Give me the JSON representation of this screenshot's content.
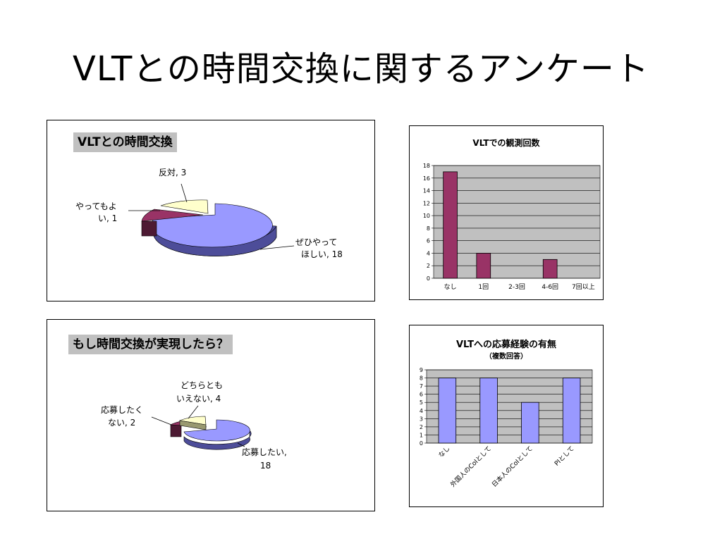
{
  "slide": {
    "title": "VLTとの時間交換に関するアンケート"
  },
  "colors": {
    "pie_main": "#9999ff",
    "pie_main_side": "#4d4d99",
    "pie_second": "#993366",
    "pie_second_side": "#4d1a33",
    "pie_third": "#ffffcc",
    "pie_third_side": "#999970",
    "bar_maroon": "#993366",
    "bar_blue": "#9999ff",
    "plot_bg": "#c0c0c0",
    "title_bg": "#c0c0c0"
  },
  "chart_data": [
    {
      "type": "pie",
      "title": "VLTとの時間交換",
      "slices": [
        {
          "name": "ぜひやって",
          "name2": "ほしい",
          "value": 18
        },
        {
          "name": "やってもよ",
          "name2": "い",
          "value": 1
        },
        {
          "name": "反対",
          "name2": "",
          "value": 3
        }
      ],
      "data_labels": [
        "ぜひやって",
        "ほしい, 18",
        "やってもよ",
        "い, 1",
        "反対, 3"
      ],
      "style": "3d-exploded"
    },
    {
      "type": "bar",
      "title": "VLTでの観測回数",
      "categories": [
        "なし",
        "1回",
        "2-3回",
        "4-6回",
        "7回以上"
      ],
      "values": [
        17,
        4,
        0,
        3,
        0
      ],
      "ylim": [
        0,
        18
      ],
      "yticks": [
        "0",
        "2",
        "4",
        "6",
        "8",
        "10",
        "12",
        "14",
        "16",
        "18"
      ],
      "grid": true
    },
    {
      "type": "pie",
      "title": "もし時間交換が実現したら？",
      "slices": [
        {
          "name": "応募したい",
          "value": 18
        },
        {
          "name": "応募したく",
          "name2": "ない",
          "value": 2
        },
        {
          "name": "どちらとも",
          "name2": "いえない",
          "value": 4
        }
      ],
      "data_labels": [
        "応募したい,",
        "18",
        "応募したく",
        "ない, 2",
        "どちらとも",
        "いえない, 4"
      ],
      "style": "3d-exploded"
    },
    {
      "type": "bar",
      "title": "VLTへの応募経験の有無",
      "subtitle": "（複数回答）",
      "categories": [
        "なし",
        "外国人のCoIとして",
        "日本人のCoIとして",
        "PIとして"
      ],
      "values": [
        8,
        8,
        5,
        8
      ],
      "ylim": [
        0,
        9
      ],
      "yticks": [
        "0",
        "1",
        "2",
        "3",
        "4",
        "5",
        "6",
        "7",
        "8",
        "9"
      ],
      "grid": true
    }
  ]
}
